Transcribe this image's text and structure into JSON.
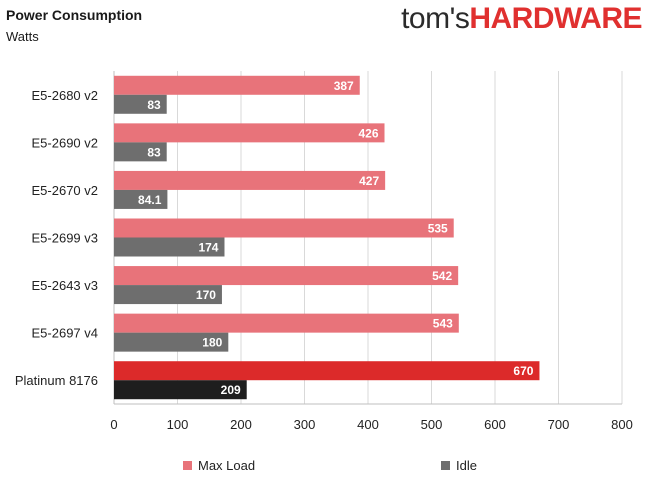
{
  "header": {
    "title": "Power Consumption",
    "subtitle": "Watts",
    "logo_prefix": "tom's",
    "logo_brand": "HARDWARE"
  },
  "colors": {
    "max_load": "#e8737a",
    "idle": "#6e6e6e",
    "highlight_max_load": "#dc2a2a",
    "highlight_idle": "#1e1e1e",
    "logo_red": "#e0302f"
  },
  "chart_data": {
    "type": "bar",
    "orientation": "horizontal",
    "title": "Power Consumption",
    "subtitle": "Watts",
    "categories": [
      "E5-2680 v2",
      "E5-2690 v2",
      "E5-2670 v2",
      "E5-2699 v3",
      "E5-2643 v3",
      "E5-2697 v4",
      "Platinum 8176"
    ],
    "highlight_category": "Platinum 8176",
    "series": [
      {
        "name": "Max Load",
        "values": [
          387,
          426,
          427,
          535,
          542,
          543,
          670
        ]
      },
      {
        "name": "Idle",
        "values": [
          83,
          83,
          84.1,
          174,
          170,
          180,
          209
        ]
      }
    ],
    "value_labels": [
      [
        "387",
        "426",
        "427",
        "535",
        "542",
        "543",
        "670"
      ],
      [
        "83",
        "83",
        "84.1",
        "174",
        "170",
        "180",
        "209"
      ]
    ],
    "xlim": [
      0,
      800
    ],
    "xticks": [
      0,
      100,
      200,
      300,
      400,
      500,
      600,
      700,
      800
    ],
    "grid": true,
    "legend_position": "bottom"
  }
}
